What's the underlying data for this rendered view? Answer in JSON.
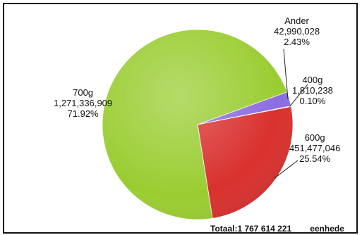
{
  "chart_data": {
    "type": "pie",
    "slices": [
      {
        "name": "700g",
        "value": "1,271,336,909",
        "percent": "71.92%",
        "share": 71.92,
        "color": "#9acd32"
      },
      {
        "name": "600g",
        "value": "451,477,046",
        "percent": "25.54%",
        "share": 25.54,
        "color": "#d9312e"
      },
      {
        "name": "400g",
        "value": "1,810,238",
        "percent": "0.10%",
        "share": 0.1,
        "color": "#5a2d8c"
      },
      {
        "name": "Ander",
        "value": "42,990,028",
        "percent": "2.43%",
        "share": 2.43,
        "color": "#8c6de0"
      }
    ],
    "total": {
      "label": "Totaal:",
      "value": "1 767 614 221",
      "unit": "eenhede"
    },
    "legend": "none"
  }
}
